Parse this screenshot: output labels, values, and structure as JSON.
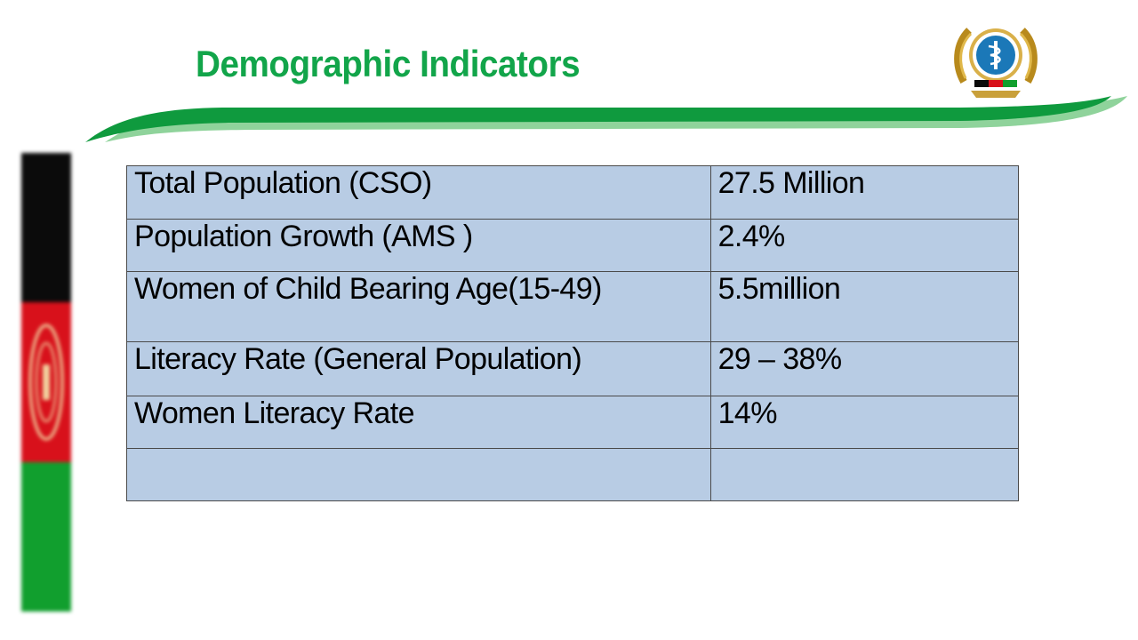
{
  "slide": {
    "title": "Demographic Indicators",
    "colors": {
      "title": "#12a54a",
      "swoosh_dark": "#0f9a3e",
      "swoosh_light": "#8fd39b",
      "table_fill": "#b8cce4",
      "flag_black": "#0b0b0b",
      "flag_red": "#d8111b",
      "flag_green": "#119f2e"
    },
    "logo": {
      "icon": "ministry-emblem-icon"
    },
    "flag": {
      "icon": "afghanistan-flag-icon"
    }
  },
  "table": {
    "rows": [
      {
        "label": "Total Population (CSO)",
        "value": "27.5 Million"
      },
      {
        "label": "Population Growth (AMS )",
        "value": "2.4%"
      },
      {
        "label": "Women of Child Bearing Age(15-49)",
        "value": "5.5million"
      },
      {
        "label": "Literacy Rate (General Population)",
        "value": "29 – 38%"
      },
      {
        "label": "Women Literacy Rate",
        "value": "14%"
      },
      {
        "label": "",
        "value": ""
      }
    ]
  }
}
